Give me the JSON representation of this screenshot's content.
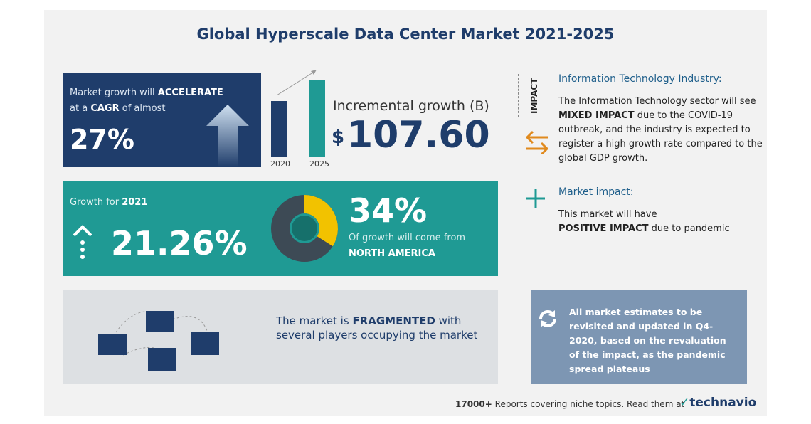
{
  "title": "Global Hyperscale Data Center Market 2021-2025",
  "cagr": {
    "text1": "Market growth will",
    "bold1": "ACCELERATE",
    "text2": "at a",
    "bold2": "CAGR",
    "text3": "of almost",
    "value": "27%"
  },
  "incremental": {
    "years": [
      "2020",
      "2025"
    ],
    "label": "Incremental growth (B)",
    "currency": "$",
    "value": "107.60"
  },
  "growth_2021": {
    "label": "Growth for",
    "year": "2021",
    "value": "21.26%"
  },
  "region": {
    "share": 34,
    "share_label": "34%",
    "text": "Of growth will come from",
    "name": "NORTH AMERICA"
  },
  "market": {
    "text1": "The market is",
    "bold": "FRAGMENTED",
    "text2": "with several players occupying the market"
  },
  "impact": {
    "heading": "IMPACT",
    "industry_title": "Information Technology Industry:",
    "industry_text1": "The Information Technology sector will see",
    "industry_bold": "MIXED IMPACT",
    "industry_text2": "due to the COVID-19 outbreak, and the industry is expected to register a high growth rate compared to the global GDP growth.",
    "market_title": "Market impact:",
    "market_text1": "This market will have",
    "market_bold": "POSITIVE IMPACT",
    "market_text2": "due to pandemic"
  },
  "note": "All market estimates to be revisited and updated in Q4-2020, based on the revaluation of the impact, as the pandemic spread plateaus",
  "footer": {
    "count": "17000+",
    "text": "Reports covering niche topics. Read them at",
    "brand": "technavio"
  }
}
